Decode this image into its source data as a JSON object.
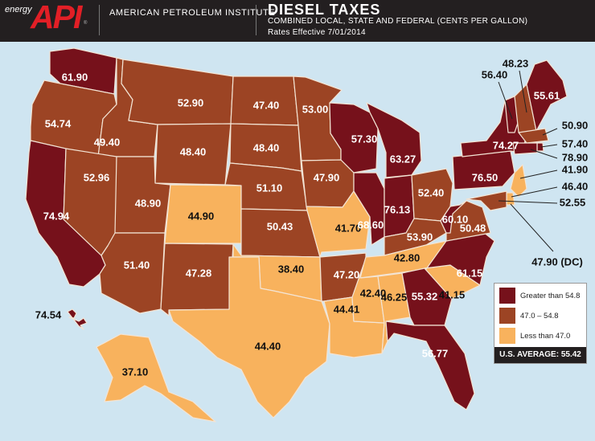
{
  "header": {
    "logo_energy": "energy",
    "logo_api": "API",
    "org": "AMERICAN PETROLEUM INSTITUTE",
    "title": "DIESEL TAXES",
    "subtitle": "COMBINED LOCAL, STATE AND FEDERAL (CENTS PER GALLON)",
    "rates": "Rates Effective 7/01/2014"
  },
  "colors": {
    "high": "#76111b",
    "mid": "#9c4424",
    "low": "#f8b25d",
    "water": "#cfe5f1",
    "border": "#f3e4d4"
  },
  "states": [
    {
      "code": "WA",
      "value": "61.90",
      "tier": "high"
    },
    {
      "code": "OR",
      "value": "54.74",
      "tier": "mid"
    },
    {
      "code": "CA",
      "value": "74.94",
      "tier": "high"
    },
    {
      "code": "ID",
      "value": "49.40",
      "tier": "mid"
    },
    {
      "code": "NV",
      "value": "52.96",
      "tier": "mid"
    },
    {
      "code": "MT",
      "value": "52.90",
      "tier": "mid"
    },
    {
      "code": "WY",
      "value": "48.40",
      "tier": "mid"
    },
    {
      "code": "UT",
      "value": "48.90",
      "tier": "mid"
    },
    {
      "code": "AZ",
      "value": "51.40",
      "tier": "mid"
    },
    {
      "code": "CO",
      "value": "44.90",
      "tier": "low"
    },
    {
      "code": "NM",
      "value": "47.28",
      "tier": "mid"
    },
    {
      "code": "ND",
      "value": "47.40",
      "tier": "mid"
    },
    {
      "code": "SD",
      "value": "48.40",
      "tier": "mid"
    },
    {
      "code": "NE",
      "value": "51.10",
      "tier": "mid"
    },
    {
      "code": "KS",
      "value": "50.43",
      "tier": "mid"
    },
    {
      "code": "OK",
      "value": "38.40",
      "tier": "low"
    },
    {
      "code": "TX",
      "value": "44.40",
      "tier": "low"
    },
    {
      "code": "MN",
      "value": "53.00",
      "tier": "mid"
    },
    {
      "code": "IA",
      "value": "47.90",
      "tier": "mid"
    },
    {
      "code": "MO",
      "value": "41.70",
      "tier": "low"
    },
    {
      "code": "AR",
      "value": "47.20",
      "tier": "mid"
    },
    {
      "code": "LA",
      "value": "44.41",
      "tier": "low"
    },
    {
      "code": "WI",
      "value": "57.30",
      "tier": "high"
    },
    {
      "code": "IL",
      "value": "68.60",
      "tier": "high"
    },
    {
      "code": "MI",
      "value": "63.27",
      "tier": "high"
    },
    {
      "code": "IN",
      "value": "76.13",
      "tier": "high"
    },
    {
      "code": "OH",
      "value": "52.40",
      "tier": "mid"
    },
    {
      "code": "KY",
      "value": "53.90",
      "tier": "mid"
    },
    {
      "code": "TN",
      "value": "42.80",
      "tier": "low"
    },
    {
      "code": "MS",
      "value": "42.40",
      "tier": "low"
    },
    {
      "code": "AL",
      "value": "46.25",
      "tier": "low"
    },
    {
      "code": "GA",
      "value": "55.32",
      "tier": "high"
    },
    {
      "code": "FL",
      "value": "56.77",
      "tier": "high"
    },
    {
      "code": "SC",
      "value": "41.15",
      "tier": "low"
    },
    {
      "code": "NC",
      "value": "61.15",
      "tier": "high"
    },
    {
      "code": "VA",
      "value": "50.48",
      "tier": "mid"
    },
    {
      "code": "WV",
      "value": "60.10",
      "tier": "high"
    },
    {
      "code": "PA",
      "value": "76.50",
      "tier": "high"
    },
    {
      "code": "NY",
      "value": "74.27",
      "tier": "high"
    },
    {
      "code": "VT",
      "value": "56.40",
      "tier": "high"
    },
    {
      "code": "NH",
      "value": "48.23",
      "tier": "mid"
    },
    {
      "code": "ME",
      "value": "55.61",
      "tier": "high"
    },
    {
      "code": "MA",
      "value": "50.90",
      "tier": "mid"
    },
    {
      "code": "RI",
      "value": "57.40",
      "tier": "high"
    },
    {
      "code": "CT",
      "value": "78.90",
      "tier": "high"
    },
    {
      "code": "NJ",
      "value": "41.90",
      "tier": "low"
    },
    {
      "code": "DE",
      "value": "46.40",
      "tier": "low"
    },
    {
      "code": "MD",
      "value": "52.55",
      "tier": "mid"
    },
    {
      "code": "DC",
      "value": "47.90 (DC)",
      "tier": "mid"
    },
    {
      "code": "HI",
      "value": "74.54",
      "tier": "high"
    },
    {
      "code": "AK",
      "value": "37.10",
      "tier": "low"
    }
  ],
  "legend": {
    "high_label": "Greater than 54.8",
    "mid_label": "47.0 – 54.8",
    "low_label": "Less than 47.0",
    "average": "U.S. AVERAGE: 55.42"
  }
}
